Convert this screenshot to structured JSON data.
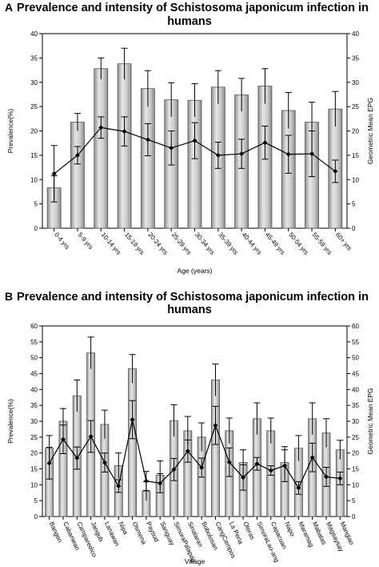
{
  "chart_data": [
    {
      "type": "bar",
      "panel_label": "A",
      "title_line1": "Prevalence and intensity of Schistosoma japonicum infection in",
      "title_line2": "humans",
      "xlabel": "Age (years)",
      "ylabel": "Prevalence(%)",
      "y2label": "Geometric Mean EPG",
      "ylim": [
        0,
        40
      ],
      "y2lim": [
        0,
        40
      ],
      "yticks": [
        "0",
        "5",
        "10",
        "15",
        "20",
        "25",
        "30",
        "35",
        "40"
      ],
      "y2ticks": [
        "0",
        "5",
        "10",
        "15",
        "20",
        "25",
        "30",
        "35",
        "40"
      ],
      "categories": [
        "0-4 yrs",
        "5-9 yrs",
        "10-14 yrs",
        "15-19 yrs",
        "20-24 yrs",
        "25-29 yrs",
        "30-34 yrs",
        "35-39 yrs",
        "40-44 yrs",
        "45-49 yrs",
        "50-54 yrs",
        "55-59 yrs",
        "60+ yrs"
      ],
      "series": [
        {
          "type": "bar",
          "values": [
            8.3,
            21.8,
            32.8,
            33.8,
            28.7,
            26.4,
            26.3,
            29.0,
            27.4,
            29.2,
            24.2,
            21.8,
            24.5
          ],
          "error": [
            2.5,
            1.8,
            2.2,
            3.2,
            3.7,
            3.5,
            3.4,
            3.4,
            3.4,
            3.6,
            3.7,
            4.1,
            3.6
          ]
        },
        {
          "type": "line",
          "axis": "y2",
          "values": [
            11.2,
            15.0,
            20.7,
            19.9,
            18.2,
            16.5,
            18.0,
            15.0,
            15.3,
            17.6,
            15.2,
            15.3,
            11.7
          ],
          "error": [
            5.8,
            1.8,
            2.2,
            3.0,
            3.3,
            3.5,
            3.7,
            2.7,
            3.0,
            3.4,
            3.9,
            4.7,
            2.3
          ]
        }
      ],
      "grid": false
    },
    {
      "type": "bar",
      "panel_label": "B",
      "title_line1": "Prevalence and intensity of Schistosoma japonicum infection in",
      "title_line2": "humans",
      "xlabel": "Village",
      "ylabel": "Prevalence(%)",
      "y2label": "Geometric Mean EPG",
      "ylim": [
        0,
        60
      ],
      "y2lim": [
        0,
        60
      ],
      "yticks": [
        "0",
        "5",
        "10",
        "15",
        "20",
        "25",
        "30",
        "35",
        "40",
        "45",
        "50",
        "55",
        "60"
      ],
      "y2ticks": [
        "0",
        "5",
        "10",
        "15",
        "20",
        "25",
        "30",
        "35",
        "40",
        "45",
        "50",
        "55",
        "60"
      ],
      "categories": [
        "Bangon",
        "Cabariwan",
        "Camparedico",
        "Jangub",
        "Lanawan",
        "Nipa",
        "Osmena",
        "Paysud",
        "Sanguay",
        "SimoraPalapag",
        "Sinalaran",
        "Bobolosan",
        "CangCampos",
        "La Perla",
        "Oleras",
        "SimoraLao-ang",
        "Capacuan",
        "Napo",
        "Maramag",
        "Mabatas",
        "Magsaysay",
        "Mangiao"
      ],
      "series": [
        {
          "type": "bar",
          "values": [
            21.5,
            30.0,
            38.0,
            51.5,
            29.0,
            16.0,
            46.5,
            8.0,
            13.0,
            30.2,
            27.0,
            25.0,
            43.0,
            27.0,
            17.0,
            30.8,
            27.0,
            17.0,
            21.5,
            30.8,
            26.3,
            21.0
          ],
          "error": [
            4.0,
            4.0,
            5.0,
            5.0,
            4.5,
            4.0,
            4.5,
            3.0,
            4.5,
            5.0,
            4.5,
            4.5,
            5.0,
            4.0,
            4.0,
            5.0,
            4.0,
            5.0,
            4.0,
            5.0,
            4.5,
            3.0
          ]
        },
        {
          "type": "line",
          "axis": "y2",
          "values": [
            16.8,
            24.3,
            18.4,
            25.2,
            17.0,
            9.6,
            30.5,
            11.2,
            10.5,
            14.8,
            20.6,
            15.4,
            28.7,
            17.1,
            12.3,
            16.6,
            14.5,
            16.0,
            9.0,
            18.6,
            12.5,
            12.0
          ],
          "error": [
            5.0,
            4.5,
            3.5,
            5.0,
            3.0,
            2.0,
            6.0,
            3.0,
            3.0,
            3.5,
            3.5,
            3.0,
            6.0,
            4.5,
            4.0,
            2.0,
            1.5,
            5.0,
            2.0,
            4.5,
            3.0,
            2.0
          ]
        }
      ],
      "grid": false
    }
  ]
}
